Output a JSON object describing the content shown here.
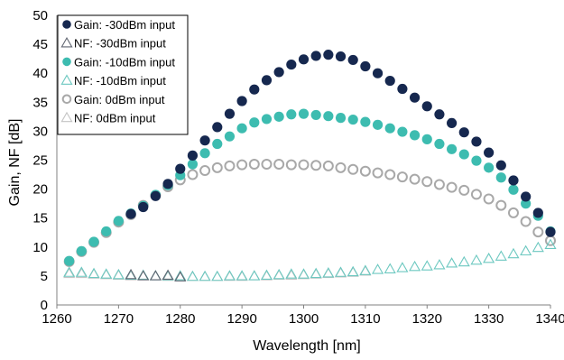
{
  "chart_data": {
    "type": "scatter",
    "title": "",
    "xlabel": "Wavelength [nm]",
    "ylabel": "Gain, NF [dB]",
    "xlim": [
      1260,
      1340
    ],
    "ylim": [
      0,
      50
    ],
    "xticks": [
      1260,
      1270,
      1280,
      1290,
      1300,
      1310,
      1320,
      1330,
      1340
    ],
    "yticks": [
      0,
      5,
      10,
      15,
      20,
      25,
      30,
      35,
      40,
      45,
      50
    ],
    "grid": false,
    "legend": "top-left",
    "series": [
      {
        "name": "Gain: -30dBm input",
        "marker": "filled-circle",
        "color": "#16284f",
        "x": [
          1272,
          1274,
          1276,
          1278,
          1280,
          1282,
          1284,
          1286,
          1288,
          1290,
          1292,
          1294,
          1296,
          1298,
          1300,
          1302,
          1304,
          1306,
          1308,
          1310,
          1312,
          1314,
          1316,
          1318,
          1320,
          1322,
          1324,
          1326,
          1328,
          1330,
          1332,
          1334,
          1336,
          1338,
          1340
        ],
        "y": [
          15.7,
          16.9,
          18.8,
          20.9,
          23.5,
          25.8,
          28.4,
          30.7,
          33.0,
          35.2,
          37.2,
          38.8,
          40.2,
          41.5,
          42.4,
          43.0,
          43.2,
          42.9,
          42.3,
          41.2,
          40.0,
          38.7,
          37.3,
          35.8,
          34.3,
          32.9,
          31.4,
          29.8,
          28.2,
          26.3,
          24.1,
          21.5,
          18.7,
          15.9,
          12.6
        ]
      },
      {
        "name": "NF: -30dBm input",
        "marker": "open-triangle",
        "color": "#5f6470",
        "x": [
          1272,
          1274,
          1276,
          1278,
          1280
        ],
        "y": [
          5.2,
          5.0,
          5.0,
          5.1,
          4.8
        ]
      },
      {
        "name": "Gain: -10dBm input",
        "marker": "filled-circle",
        "color": "#3dbcb0",
        "x": [
          1262,
          1264,
          1266,
          1268,
          1270,
          1272,
          1274,
          1276,
          1278,
          1280,
          1282,
          1284,
          1286,
          1288,
          1290,
          1292,
          1294,
          1296,
          1298,
          1300,
          1302,
          1304,
          1306,
          1308,
          1310,
          1312,
          1314,
          1316,
          1318,
          1320,
          1322,
          1324,
          1326,
          1328,
          1330,
          1332,
          1334,
          1336,
          1338,
          1340
        ],
        "y": [
          7.6,
          9.3,
          10.9,
          12.7,
          14.5,
          15.8,
          17.1,
          19.0,
          20.7,
          22.4,
          24.3,
          26.2,
          27.8,
          29.1,
          30.5,
          31.5,
          32.1,
          32.5,
          32.9,
          33.0,
          32.8,
          32.6,
          32.3,
          32.0,
          31.6,
          31.1,
          30.5,
          29.9,
          29.3,
          28.6,
          27.8,
          26.9,
          26.0,
          24.9,
          23.7,
          22.0,
          19.9,
          17.5,
          15.4,
          12.7
        ]
      },
      {
        "name": "NF: -10dBm input",
        "marker": "open-triangle",
        "color": "#6cc8c0",
        "x": [
          1262,
          1264,
          1266,
          1268,
          1270,
          1272,
          1274,
          1276,
          1278,
          1280,
          1282,
          1284,
          1286,
          1288,
          1290,
          1292,
          1294,
          1296,
          1298,
          1300,
          1302,
          1304,
          1306,
          1308,
          1310,
          1312,
          1314,
          1316,
          1318,
          1320,
          1322,
          1324,
          1326,
          1328,
          1330,
          1332,
          1334,
          1336,
          1338,
          1340
        ],
        "y": [
          5.6,
          5.6,
          5.4,
          5.3,
          5.2,
          5.1,
          5.1,
          5.0,
          5.0,
          5.0,
          4.9,
          4.9,
          4.9,
          5.0,
          5.0,
          5.0,
          5.1,
          5.2,
          5.3,
          5.3,
          5.4,
          5.5,
          5.6,
          5.7,
          5.9,
          6.1,
          6.2,
          6.4,
          6.6,
          6.7,
          6.9,
          7.2,
          7.4,
          7.7,
          8.0,
          8.4,
          8.8,
          9.3,
          9.9,
          10.4
        ]
      },
      {
        "name": "Gain: 0dBm input",
        "marker": "open-circle",
        "color": "#a8a8a8",
        "x": [
          1262,
          1264,
          1266,
          1268,
          1270,
          1272,
          1274,
          1276,
          1278,
          1280,
          1282,
          1284,
          1286,
          1288,
          1290,
          1292,
          1294,
          1296,
          1298,
          1300,
          1302,
          1304,
          1306,
          1308,
          1310,
          1312,
          1314,
          1316,
          1318,
          1320,
          1322,
          1324,
          1326,
          1328,
          1330,
          1332,
          1334,
          1336,
          1338,
          1340
        ],
        "y": [
          7.5,
          9.2,
          10.8,
          12.5,
          14.3,
          15.6,
          17.2,
          18.9,
          20.4,
          21.6,
          22.5,
          23.2,
          23.7,
          24.0,
          24.2,
          24.3,
          24.3,
          24.3,
          24.2,
          24.2,
          24.1,
          24.0,
          23.7,
          23.4,
          23.1,
          22.8,
          22.5,
          22.1,
          21.7,
          21.3,
          20.8,
          20.3,
          19.8,
          19.1,
          18.3,
          17.2,
          15.9,
          14.4,
          12.6,
          11.1
        ]
      },
      {
        "name": "NF: 0dBm input",
        "marker": "open-triangle",
        "color": "#c4c4c4",
        "x": [
          1262,
          1264,
          1266,
          1268,
          1270,
          1272,
          1274,
          1276,
          1278,
          1280,
          1282,
          1284,
          1286,
          1288,
          1290,
          1292,
          1294,
          1296,
          1298,
          1300,
          1302,
          1304,
          1306,
          1308,
          1310
        ],
        "y": [
          5.4,
          5.4,
          5.3,
          5.2,
          5.1,
          5.0,
          5.0,
          5.0,
          4.9,
          4.9,
          4.9,
          4.9,
          4.9,
          4.9,
          4.9,
          5.0,
          5.0,
          5.1,
          5.1,
          5.2,
          5.3,
          5.4,
          5.5,
          5.6,
          5.8
        ]
      }
    ]
  }
}
